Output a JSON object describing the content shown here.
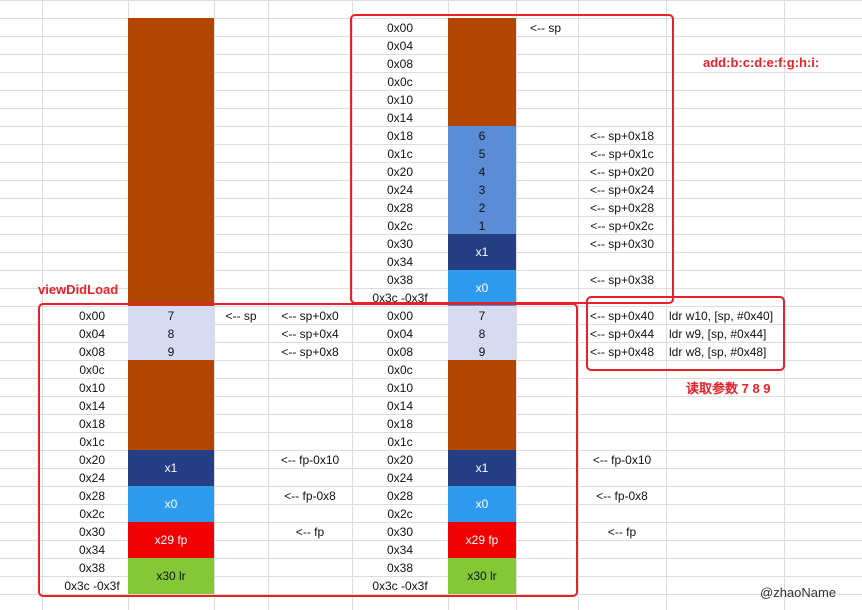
{
  "colors": {
    "brown": "#b34700",
    "blue": "#5b8dd6",
    "navy": "#263e84",
    "sky": "#2f9bef",
    "red": "#f00000",
    "green": "#84c838",
    "lavender": "#d7dbf2",
    "frame": "#e8202a"
  },
  "labels": {
    "add_fn": "add:b:c:d:e:f:g:h:i:",
    "view_did_load": "viewDidLoad",
    "read_params": "读取参数 7 8 9",
    "watermark": "@zhaoName"
  },
  "add_frame": {
    "offsets": [
      "0x00",
      "0x04",
      "0x08",
      "0x0c",
      "0x10",
      "0x14",
      "0x18",
      "0x1c",
      "0x20",
      "0x24",
      "0x28",
      "0x2c",
      "0x30",
      "0x34",
      "0x38",
      "0x3c -0x3f"
    ],
    "sp_arrow": "<-- sp",
    "values": [
      "6",
      "5",
      "4",
      "3",
      "2",
      "1"
    ],
    "x1": "x1",
    "x0": "x0",
    "right_notes": [
      "<-- sp+0x18",
      "<-- sp+0x1c",
      "<-- sp+0x20",
      "<-- sp+0x24",
      "<-- sp+0x28",
      "<-- sp+0x2c",
      "<-- sp+0x30",
      "<-- sp+0x38"
    ]
  },
  "left_frame": {
    "offsets": [
      "0x00",
      "0x04",
      "0x08",
      "0x0c",
      "0x10",
      "0x14",
      "0x18",
      "0x1c",
      "0x20",
      "0x24",
      "0x28",
      "0x2c",
      "0x30",
      "0x34",
      "0x38",
      "0x3c -0x3f"
    ],
    "args": [
      "7",
      "8",
      "9"
    ],
    "sp_arrow": "<-- sp",
    "sp_notes": [
      "<-- sp+0x0",
      "<-- sp+0x4",
      "<-- sp+0x8"
    ],
    "x1": "x1",
    "x0": "x0",
    "fp": "x29 fp",
    "lr": "x30 lr",
    "fp_notes": [
      "<-- fp-0x10",
      "<-- fp-0x8",
      "<-- fp"
    ]
  },
  "right_frame": {
    "offsets": [
      "0x00",
      "0x04",
      "0x08",
      "0x0c",
      "0x10",
      "0x14",
      "0x18",
      "0x1c",
      "0x20",
      "0x24",
      "0x28",
      "0x2c",
      "0x30",
      "0x34",
      "0x38",
      "0x3c -0x3f"
    ],
    "args": [
      "7",
      "8",
      "9"
    ],
    "sp_notes": [
      "<-- sp+0x40",
      "<-- sp+0x44",
      "<-- sp+0x48"
    ],
    "ldr": [
      "ldr  w10, [sp, #0x40]",
      "ldr   w9, [sp, #0x44]",
      "ldr   w8, [sp, #0x48]"
    ],
    "x1": "x1",
    "x0": "x0",
    "fp": "x29 fp",
    "lr": "x30 lr",
    "fp_notes": [
      "<-- fp-0x10",
      "<-- fp-0x8",
      "<-- fp"
    ]
  }
}
